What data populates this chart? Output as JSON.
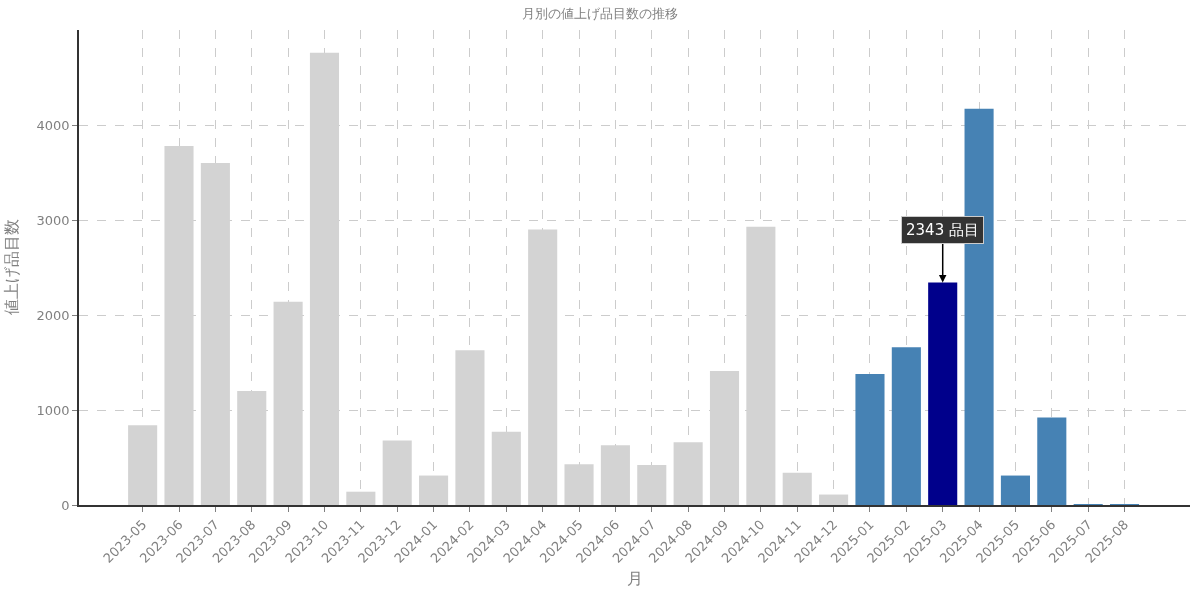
{
  "chart_data": {
    "type": "bar",
    "title": "月別の値上げ品目数の推移",
    "xlabel": "月",
    "ylabel": "値上げ品目数",
    "categories": [
      "2023-05",
      "2023-06",
      "2023-07",
      "2023-08",
      "2023-09",
      "2023-10",
      "2023-11",
      "2023-12",
      "2024-01",
      "2024-02",
      "2024-03",
      "2024-04",
      "2024-05",
      "2024-06",
      "2024-07",
      "2024-08",
      "2024-09",
      "2024-10",
      "2024-11",
      "2024-12",
      "2025-01",
      "2025-02",
      "2025-03",
      "2025-04",
      "2025-05",
      "2025-06",
      "2025-07",
      "2025-08"
    ],
    "values": [
      840,
      3780,
      3600,
      1200,
      2140,
      4760,
      140,
      680,
      310,
      1630,
      770,
      2900,
      430,
      630,
      420,
      660,
      1410,
      2930,
      340,
      110,
      1380,
      1660,
      2343,
      4170,
      310,
      920,
      10,
      10
    ],
    "colors": [
      "#d3d3d3",
      "#d3d3d3",
      "#d3d3d3",
      "#d3d3d3",
      "#d3d3d3",
      "#d3d3d3",
      "#d3d3d3",
      "#d3d3d3",
      "#d3d3d3",
      "#d3d3d3",
      "#d3d3d3",
      "#d3d3d3",
      "#d3d3d3",
      "#d3d3d3",
      "#d3d3d3",
      "#d3d3d3",
      "#d3d3d3",
      "#d3d3d3",
      "#d3d3d3",
      "#d3d3d3",
      "#4682b4",
      "#4682b4",
      "#00008b",
      "#4682b4",
      "#4682b4",
      "#4682b4",
      "#4682b4",
      "#4682b4"
    ],
    "annotations": [
      {
        "text": "2343 品目",
        "x": "2025-03",
        "y": 2343
      }
    ],
    "ylim": [
      0,
      5000
    ],
    "yticks": [
      0,
      1000,
      2000,
      3000,
      4000
    ],
    "grid": true
  }
}
